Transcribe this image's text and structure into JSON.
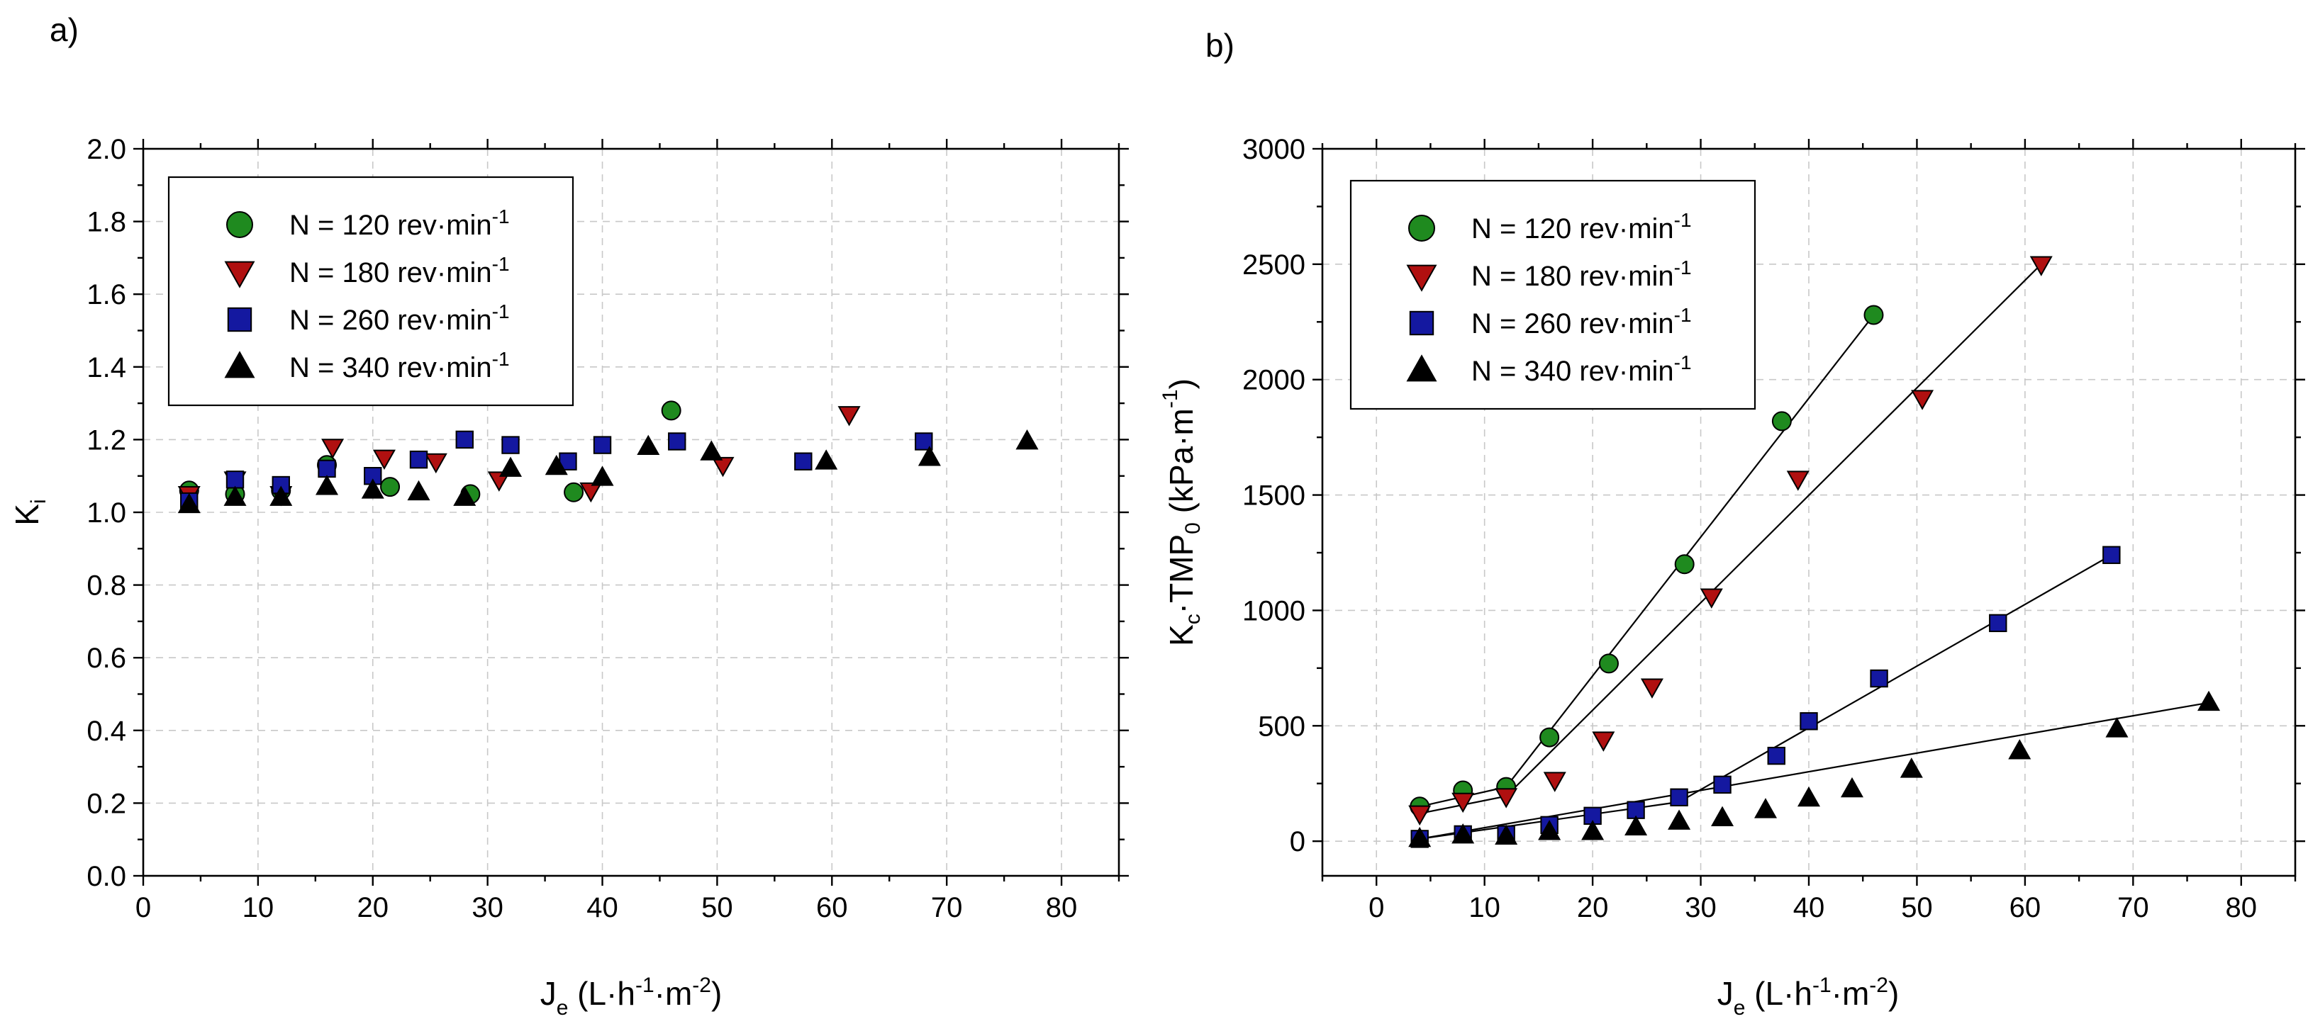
{
  "chart_data": [
    {
      "panel": "a)",
      "type": "scatter",
      "xlabel": {
        "main": "J",
        "sub": "e",
        "unit": "(L·h",
        "sup1": "-1",
        "mid": "·m",
        "sup2": "-2",
        "end": ")"
      },
      "ylabel": {
        "main": "K",
        "sub": "i"
      },
      "xlim": [
        0,
        85
      ],
      "ylim": [
        0,
        2.0
      ],
      "xticks": [
        "0",
        "10",
        "20",
        "30",
        "40",
        "50",
        "60",
        "70",
        "80"
      ],
      "xtick_values": [
        0,
        10,
        20,
        30,
        40,
        50,
        60,
        70,
        80
      ],
      "yticks": [
        "0.0",
        "0.2",
        "0.4",
        "0.6",
        "0.8",
        "1.0",
        "1.2",
        "1.4",
        "1.6",
        "1.8",
        "2.0"
      ],
      "ytick_values": [
        0,
        0.2,
        0.4,
        0.6,
        0.8,
        1.0,
        1.2,
        1.4,
        1.6,
        1.8,
        2.0
      ],
      "grid": true,
      "legend_position": "top-left",
      "series": [
        {
          "name": "N = 120 rev·min",
          "sup": "-1",
          "marker": "circle",
          "color": "#1f8a1f",
          "x": [
            4,
            8,
            12,
            16,
            21.5,
            28.5,
            37.5,
            46
          ],
          "y": [
            1.06,
            1.05,
            1.06,
            1.13,
            1.07,
            1.05,
            1.055,
            1.28
          ]
        },
        {
          "name": "N = 180 rev·min",
          "sup": "-1",
          "marker": "triangle-down",
          "color": "#b01010",
          "x": [
            4,
            8,
            12,
            16.5,
            21,
            25.5,
            31,
            39,
            50.5,
            61.5
          ],
          "y": [
            1.05,
            1.09,
            1.05,
            1.18,
            1.15,
            1.14,
            1.09,
            1.06,
            1.13,
            1.27
          ]
        },
        {
          "name": "N = 260 rev·min",
          "sup": "-1",
          "marker": "square",
          "color": "#1418a0",
          "x": [
            4,
            8,
            12,
            16,
            20,
            24,
            28,
            32,
            37,
            40,
            46.5,
            57.5,
            68
          ],
          "y": [
            1.03,
            1.09,
            1.075,
            1.12,
            1.1,
            1.145,
            1.2,
            1.185,
            1.14,
            1.185,
            1.195,
            1.14,
            1.195
          ]
        },
        {
          "name": "N = 340 rev·min",
          "sup": "-1",
          "marker": "triangle-up",
          "color": "#000000",
          "x": [
            4,
            8,
            12,
            16,
            20,
            24,
            28,
            32,
            36,
            40,
            44,
            49.5,
            59.5,
            68.5,
            77
          ],
          "y": [
            1.02,
            1.04,
            1.04,
            1.07,
            1.06,
            1.055,
            1.04,
            1.12,
            1.125,
            1.095,
            1.18,
            1.165,
            1.14,
            1.15,
            1.195
          ]
        }
      ]
    },
    {
      "panel": "b)",
      "type": "scatter",
      "xlabel": {
        "main": "J",
        "sub": "e",
        "unit": "(L·h",
        "sup1": "-1",
        "mid": "·m",
        "sup2": "-2",
        "end": ")"
      },
      "ylabel": {
        "main": "K",
        "sub": "c",
        "mid": "·TMP",
        "sub2": "0",
        "unit": "(kPa·m",
        "sup": "-1",
        "end": ")"
      },
      "xlim": [
        -5,
        85
      ],
      "ylim": [
        -150,
        3000
      ],
      "xticks": [
        "0",
        "10",
        "20",
        "30",
        "40",
        "50",
        "60",
        "70",
        "80"
      ],
      "xtick_values": [
        0,
        10,
        20,
        30,
        40,
        50,
        60,
        70,
        80
      ],
      "yticks": [
        "0",
        "500",
        "1000",
        "1500",
        "2000",
        "2500",
        "3000"
      ],
      "ytick_values": [
        0,
        500,
        1000,
        1500,
        2000,
        2500,
        3000
      ],
      "grid": true,
      "legend_position": "top-left",
      "series": [
        {
          "name": "N = 120 rev·min",
          "sup": "-1",
          "marker": "circle",
          "color": "#1f8a1f",
          "x": [
            4,
            8,
            12,
            16,
            21.5,
            28.5,
            37.5,
            46
          ],
          "y": [
            150,
            220,
            235,
            450,
            770,
            1200,
            1820,
            2280
          ],
          "fit": [
            [
              4,
              150
            ],
            [
              12,
              235
            ],
            [
              46,
              2280
            ]
          ]
        },
        {
          "name": "N = 180 rev·min",
          "sup": "-1",
          "marker": "triangle-down",
          "color": "#b01010",
          "x": [
            4,
            8,
            12,
            16.5,
            21,
            25.5,
            31,
            39,
            50.5,
            61.5
          ],
          "y": [
            120,
            175,
            195,
            265,
            440,
            670,
            1060,
            1570,
            1920,
            2500
          ],
          "fit": [
            [
              4,
              120
            ],
            [
              12,
              195
            ],
            [
              61.5,
              2500
            ]
          ]
        },
        {
          "name": "N = 260 rev·min",
          "sup": "-1",
          "marker": "square",
          "color": "#1418a0",
          "x": [
            4,
            8,
            12,
            16,
            20,
            24,
            28,
            32,
            37,
            40,
            46.5,
            57.5,
            68
          ],
          "y": [
            10,
            30,
            30,
            70,
            110,
            135,
            190,
            245,
            370,
            520,
            705,
            945,
            1240
          ],
          "fit": [
            [
              4,
              10
            ],
            [
              28,
              170
            ],
            [
              68,
              1240
            ]
          ]
        },
        {
          "name": "N = 340 rev·min",
          "sup": "-1",
          "marker": "triangle-up",
          "color": "#000000",
          "x": [
            4,
            8,
            12,
            16,
            20,
            24,
            28,
            32,
            36,
            40,
            44,
            49.5,
            59.5,
            68.5,
            77
          ],
          "y": [
            10,
            25,
            20,
            40,
            40,
            60,
            85,
            100,
            135,
            185,
            225,
            310,
            390,
            485,
            600
          ],
          "fit": [
            [
              4,
              10
            ],
            [
              77,
              600
            ]
          ]
        }
      ]
    }
  ]
}
